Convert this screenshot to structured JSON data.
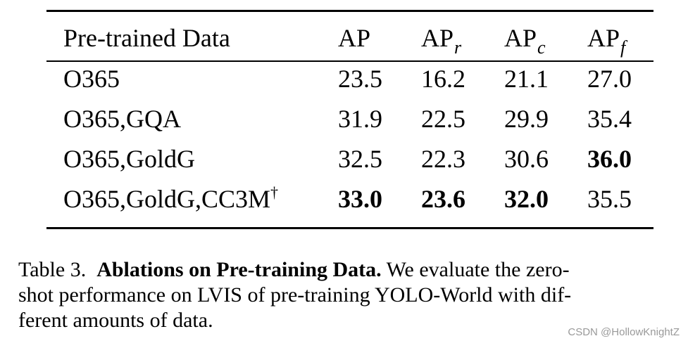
{
  "table": {
    "headers": {
      "data": "Pre-trained Data",
      "ap": "AP",
      "ap_r_base": "AP",
      "ap_r_sub": "r",
      "ap_c_base": "AP",
      "ap_c_sub": "c",
      "ap_f_base": "AP",
      "ap_f_sub": "f"
    },
    "rows": [
      {
        "data": "O365",
        "dagger": "",
        "ap": "23.5",
        "ap_r": "16.2",
        "ap_c": "21.1",
        "ap_f": "27.0"
      },
      {
        "data": "O365,GQA",
        "dagger": "",
        "ap": "31.9",
        "ap_r": "22.5",
        "ap_c": "29.9",
        "ap_f": "35.4"
      },
      {
        "data": "O365,GoldG",
        "dagger": "",
        "ap": "32.5",
        "ap_r": "22.3",
        "ap_c": "30.6",
        "ap_f": "36.0"
      },
      {
        "data": "O365,GoldG,CC3M",
        "dagger": "†",
        "ap": "33.0",
        "ap_r": "23.6",
        "ap_c": "32.0",
        "ap_f": "35.5"
      }
    ]
  },
  "caption": {
    "label": "Table 3.",
    "title": "Ablations on Pre-training Data.",
    "line1_rest": "We evaluate the zero-",
    "line2": "shot performance on LVIS of pre-training YOLO-World with dif-",
    "line3": "ferent amounts of data."
  },
  "watermark": "CSDN @HollowKnightZ"
}
